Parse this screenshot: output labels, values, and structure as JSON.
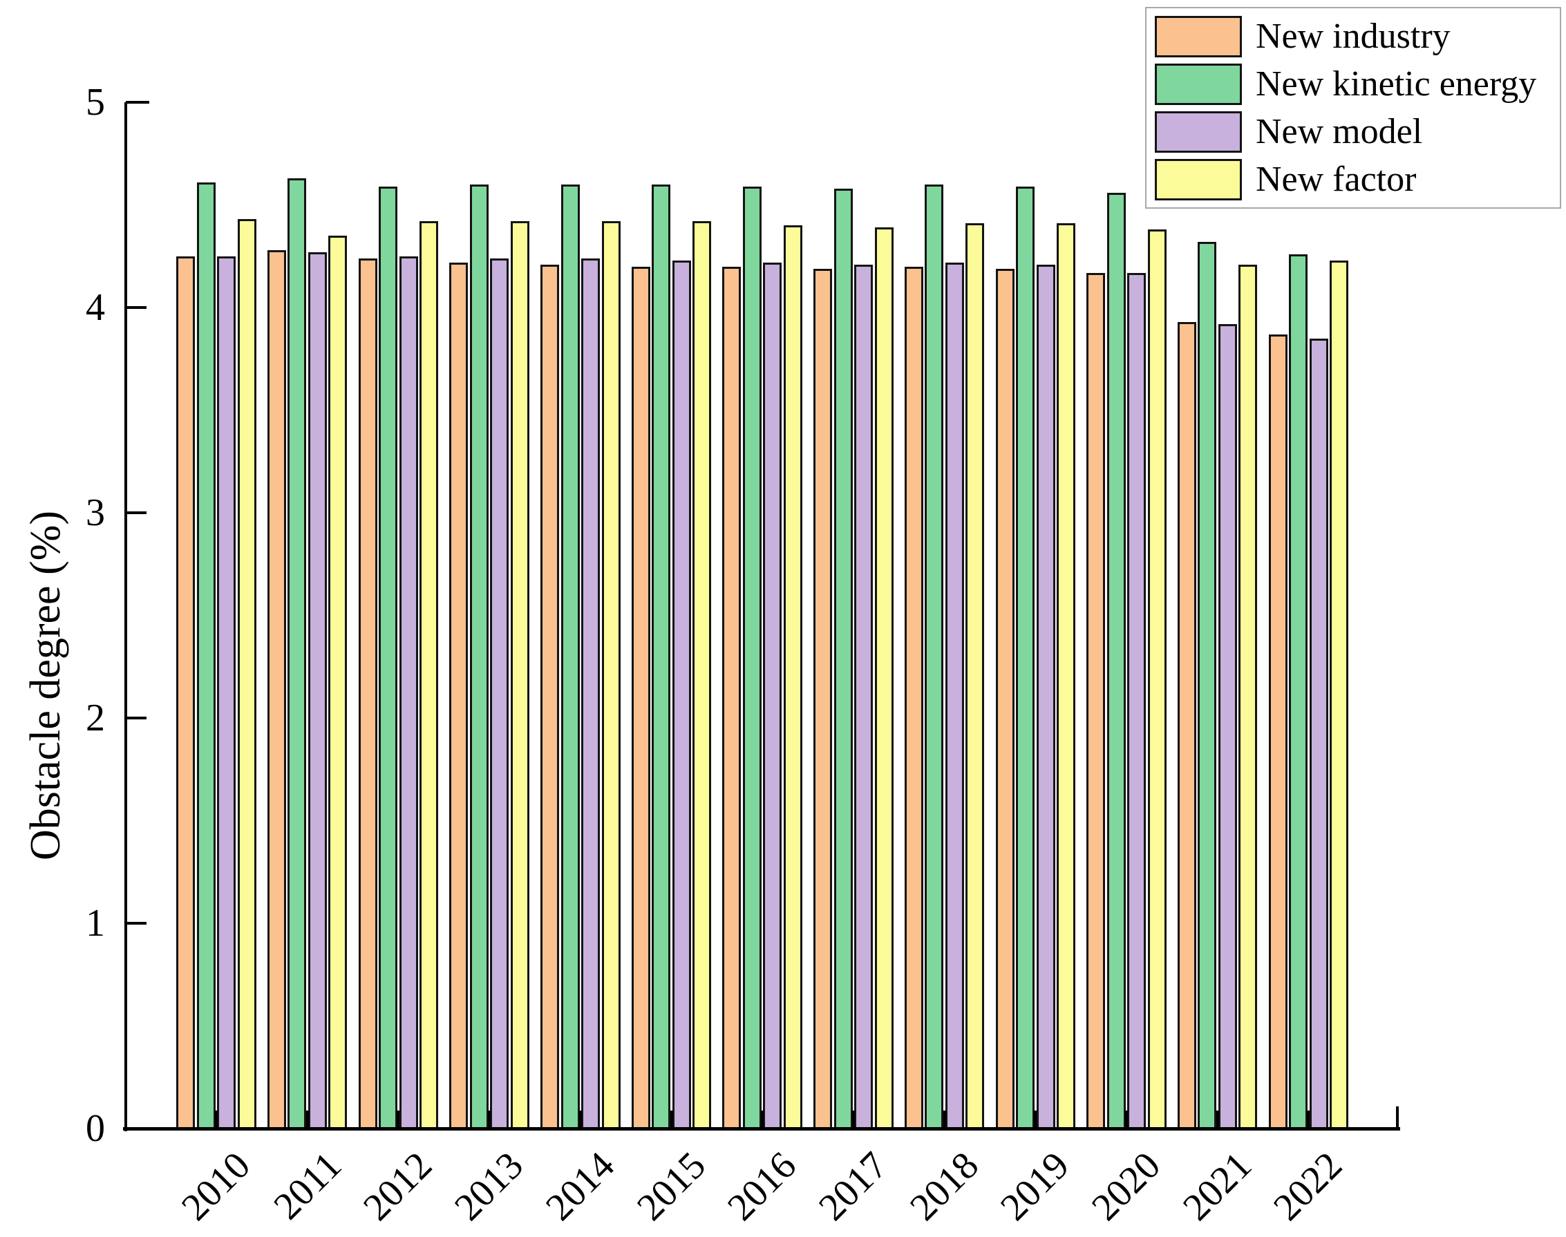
{
  "chart_data": {
    "type": "bar",
    "title": "",
    "xlabel": "",
    "ylabel": "Obstacle degree (%)",
    "ylim": [
      0,
      5
    ],
    "yticks": [
      0,
      1,
      2,
      3,
      4,
      5
    ],
    "grid": false,
    "legend_position": "top-right",
    "bar_edge_color": "#141414",
    "axis_color": "#000000",
    "legend_border_color": "#a8a8a8",
    "categories": [
      "2010",
      "2011",
      "2012",
      "2013",
      "2014",
      "2015",
      "2016",
      "2017",
      "2018",
      "2019",
      "2020",
      "2021",
      "2022"
    ],
    "series": [
      {
        "name": "New industry",
        "color": "#FBC18F",
        "values": [
          4.25,
          4.28,
          4.24,
          4.22,
          4.21,
          4.2,
          4.2,
          4.19,
          4.2,
          4.19,
          4.17,
          3.93,
          3.87
        ]
      },
      {
        "name": "New kinetic energy",
        "color": "#7FD79D",
        "values": [
          4.61,
          4.63,
          4.59,
          4.6,
          4.6,
          4.6,
          4.59,
          4.58,
          4.6,
          4.59,
          4.56,
          4.32,
          4.26
        ]
      },
      {
        "name": "New model",
        "color": "#C8B1DC",
        "values": [
          4.25,
          4.27,
          4.25,
          4.24,
          4.24,
          4.23,
          4.22,
          4.21,
          4.22,
          4.21,
          4.17,
          3.92,
          3.85
        ]
      },
      {
        "name": "New factor",
        "color": "#FBFB9A",
        "values": [
          4.43,
          4.35,
          4.42,
          4.42,
          4.42,
          4.42,
          4.4,
          4.39,
          4.41,
          4.41,
          4.38,
          4.21,
          4.23
        ]
      }
    ]
  }
}
